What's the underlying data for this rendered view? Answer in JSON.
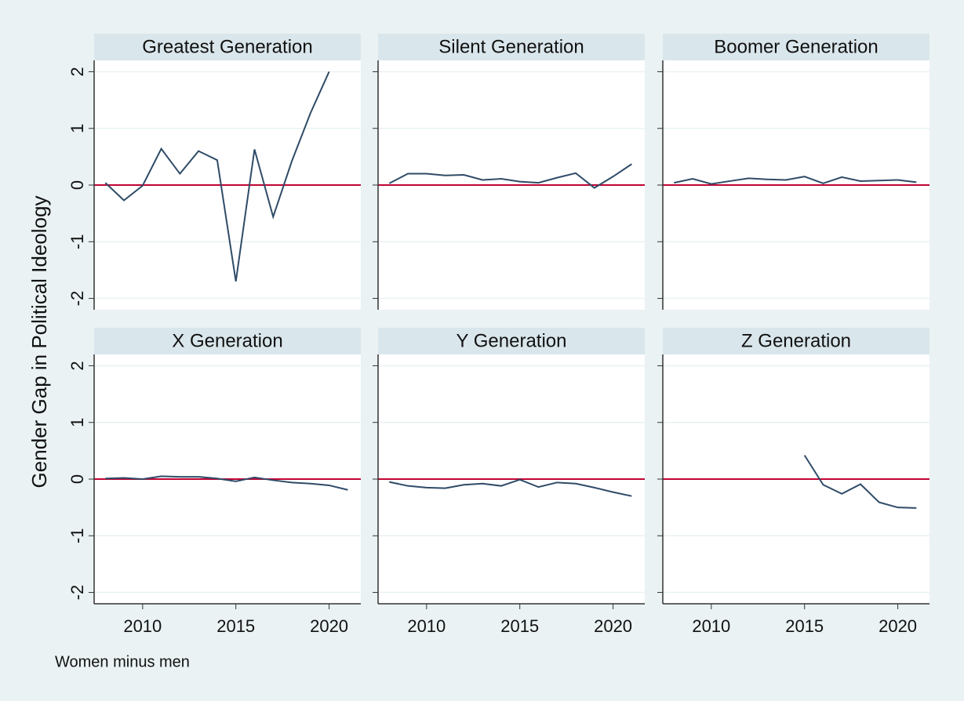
{
  "chart_data": {
    "type": "line",
    "y_label": "Gender Gap in Political Ideology",
    "note": "Women minus men",
    "x": [
      2008,
      2009,
      2010,
      2011,
      2012,
      2013,
      2014,
      2015,
      2016,
      2017,
      2018,
      2019,
      2020,
      2021
    ],
    "xlim": [
      2007.4,
      2021.7
    ],
    "xticks": [
      2010,
      2015,
      2020
    ],
    "ylim": [
      -2.2,
      2.2
    ],
    "yticks": [
      -2,
      -1,
      0,
      1,
      2
    ],
    "grid": true,
    "reference_line": 0,
    "reference_color": "#c10534",
    "color": "#2f4b67",
    "series": [
      {
        "name": "Greatest Generation",
        "values": [
          0.04,
          -0.27,
          -0.01,
          0.64,
          0.2,
          0.6,
          0.44,
          -1.7,
          0.63,
          -0.56,
          0.42,
          1.27,
          2.0,
          null
        ]
      },
      {
        "name": "Silent Generation",
        "values": [
          0.03,
          0.2,
          0.2,
          0.17,
          0.18,
          0.09,
          0.11,
          0.06,
          0.04,
          0.13,
          0.21,
          -0.05,
          0.15,
          0.37
        ]
      },
      {
        "name": "Boomer Generation",
        "values": [
          0.04,
          0.11,
          0.02,
          0.07,
          0.12,
          0.1,
          0.09,
          0.15,
          0.03,
          0.14,
          0.07,
          0.08,
          0.09,
          0.05
        ]
      },
      {
        "name": "X Generation",
        "values": [
          0.01,
          0.02,
          0.0,
          0.05,
          0.04,
          0.04,
          0.01,
          -0.04,
          0.03,
          -0.02,
          -0.06,
          -0.08,
          -0.11,
          -0.19
        ]
      },
      {
        "name": "Y Generation",
        "values": [
          -0.05,
          -0.12,
          -0.15,
          -0.16,
          -0.1,
          -0.08,
          -0.12,
          -0.01,
          -0.14,
          -0.06,
          -0.08,
          -0.15,
          -0.23,
          -0.3
        ]
      },
      {
        "name": "Z Generation",
        "values": [
          null,
          null,
          null,
          null,
          null,
          null,
          null,
          0.42,
          -0.1,
          -0.26,
          -0.09,
          -0.41,
          -0.5,
          -0.51
        ]
      }
    ]
  }
}
